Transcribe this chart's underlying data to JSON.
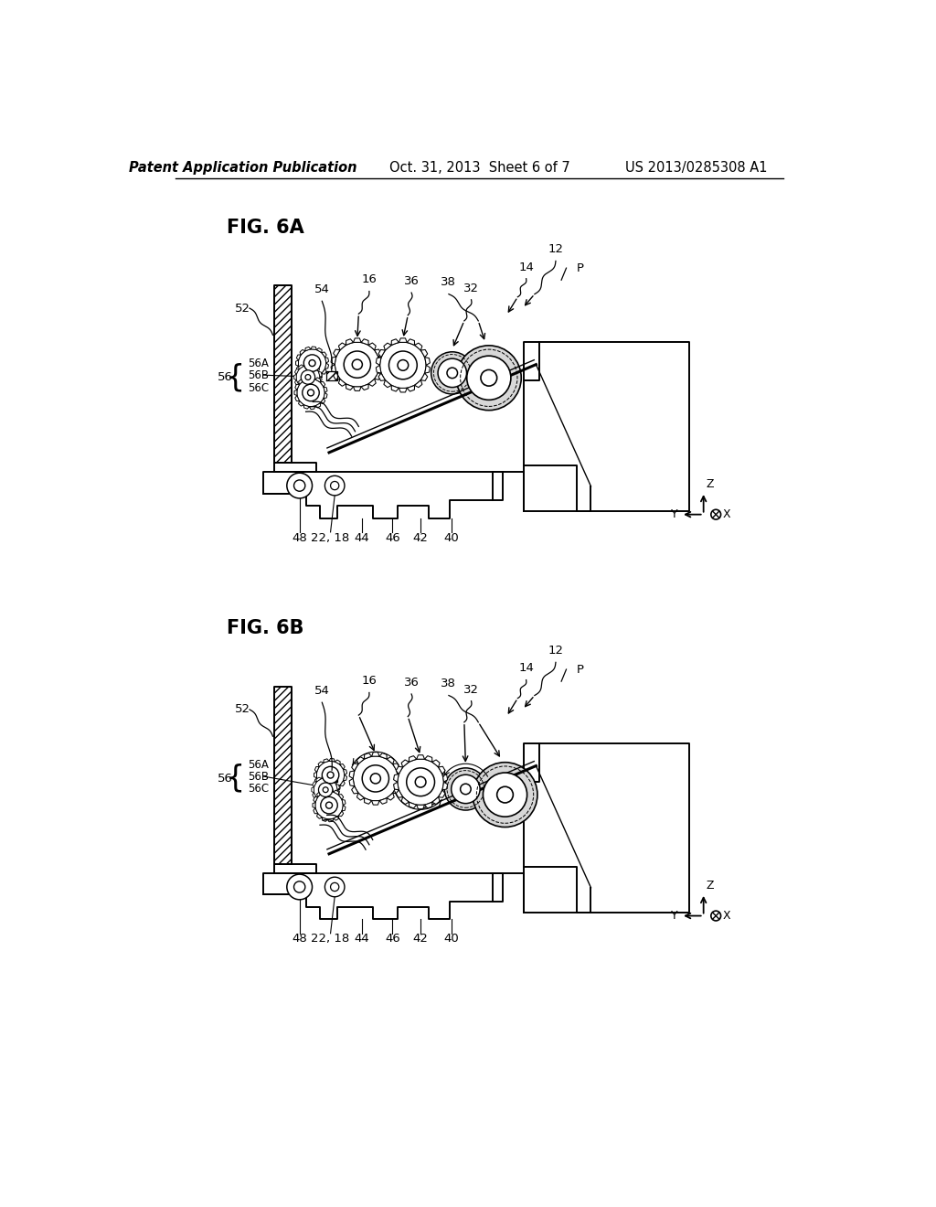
{
  "bg_color": "#ffffff",
  "line_color": "#000000",
  "header_left": "Patent Application Publication",
  "header_center": "Oct. 31, 2013  Sheet 6 of 7",
  "header_right": "US 2013/0285308 A1",
  "fig6a_label": "FIG. 6A",
  "fig6b_label": "FIG. 6B",
  "header_fontsize": 10.5,
  "label_fontsize": 15
}
